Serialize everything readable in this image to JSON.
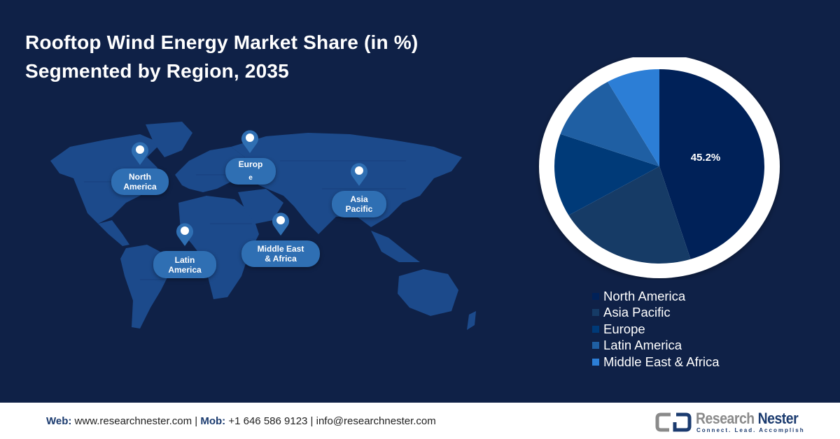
{
  "title": {
    "line1": "Rooftop Wind Energy Market Share (in %)",
    "line2": "Segmented by Region, 2035"
  },
  "map": {
    "pins": [
      {
        "label_line1": "North",
        "label_line2": "America"
      },
      {
        "label_line1": "Europ",
        "label_line2": "e"
      },
      {
        "label_line1": "Asia",
        "label_line2": "Pacific"
      },
      {
        "label_line1": "Latin",
        "label_line2": "America"
      },
      {
        "label_line1": "Middle East",
        "label_line2": "& Africa"
      }
    ]
  },
  "chart_data": {
    "type": "pie",
    "title": "Rooftop Wind Energy Market Share (in %) Segmented by Region, 2035",
    "categories": [
      "North America",
      "Asia Pacific",
      "Europe",
      "Latin America",
      "Middle East & Africa"
    ],
    "values": [
      45.2,
      21.4,
      13.8,
      11.4,
      8.2
    ],
    "colors": [
      "#002158",
      "#163b66",
      "#003a78",
      "#1f5fa3",
      "#2c7ed6"
    ],
    "data_labels": [
      "45.2%",
      "",
      "",
      "",
      ""
    ],
    "start_angle": "12 o'clock, clockwise",
    "legend_position": "bottom-right"
  },
  "pie": {
    "label": "45.2%"
  },
  "legend": {
    "items": [
      {
        "label": "North America",
        "color": "#002158"
      },
      {
        "label": "Asia Pacific",
        "color": "#163b66"
      },
      {
        "label": "Europe",
        "color": "#003a78"
      },
      {
        "label": "Latin America",
        "color": "#1f5fa3"
      },
      {
        "label": "Middle East & Africa",
        "color": "#2c7ed6"
      }
    ]
  },
  "footer": {
    "web_label": "Web:",
    "web_value": " www.researchnester.com | ",
    "mob_label": "Mob:",
    "mob_value": " +1 646 586 9123 | info@researchnester.com",
    "logo_name_1": "Research ",
    "logo_name_2": "Nester",
    "logo_tagline": "Connect. Lead. Accomplish"
  }
}
